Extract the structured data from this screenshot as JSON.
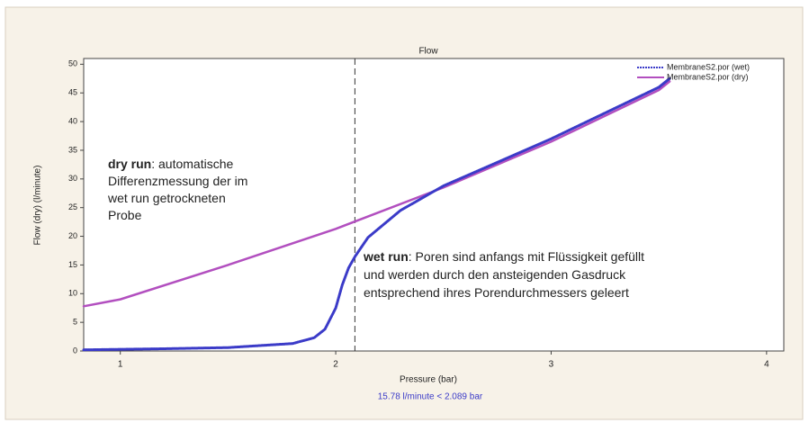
{
  "chart_data": {
    "type": "line",
    "title": "Flow",
    "xlabel": "Pressure (bar)",
    "ylabel": "Flow (dry) (l/minute)",
    "xlim": [
      0.83,
      4.08
    ],
    "ylim": [
      0,
      51
    ],
    "xticks": [
      1,
      2,
      3,
      4
    ],
    "yticks": [
      0,
      5,
      10,
      15,
      20,
      25,
      30,
      35,
      40,
      45,
      50
    ],
    "legend": "top-right",
    "series": [
      {
        "name": "MembraneS2.por (wet)",
        "color": "#3b3bc8",
        "style": "dotted",
        "x": [
          0.83,
          1.2,
          1.5,
          1.8,
          1.9,
          1.95,
          2.0,
          2.03,
          2.06,
          2.09,
          2.15,
          2.3,
          2.5,
          3.0,
          3.5,
          3.55
        ],
        "values": [
          0.2,
          0.4,
          0.6,
          1.3,
          2.3,
          3.8,
          7.5,
          11.5,
          14.5,
          16.5,
          19.8,
          24.5,
          28.8,
          37.0,
          46.0,
          47.5
        ]
      },
      {
        "name": "MembraneS2.por (dry)",
        "color": "#b24fbf",
        "style": "solid",
        "x": [
          0.83,
          1.0,
          1.5,
          2.0,
          2.5,
          3.0,
          3.5,
          3.55
        ],
        "values": [
          7.8,
          9.0,
          15.0,
          21.3,
          28.5,
          36.5,
          45.5,
          47.0
        ]
      }
    ],
    "marker_x": 2.089,
    "marker_label": "15.78 l/minute < 2.089 bar",
    "annotations": [
      {
        "bold": "dry run",
        "lines": [
          ": automatische",
          "Differenzmessung der im",
          "wet run getrockneten",
          "Probe"
        ]
      },
      {
        "bold": "wet run",
        "lines": [
          ": Poren sind anfangs mit Flüssigkeit gefüllt",
          "und werden durch den ansteigenden Gasdruck",
          "entsprechend ihres Porendurchmessers geleert"
        ]
      }
    ]
  }
}
